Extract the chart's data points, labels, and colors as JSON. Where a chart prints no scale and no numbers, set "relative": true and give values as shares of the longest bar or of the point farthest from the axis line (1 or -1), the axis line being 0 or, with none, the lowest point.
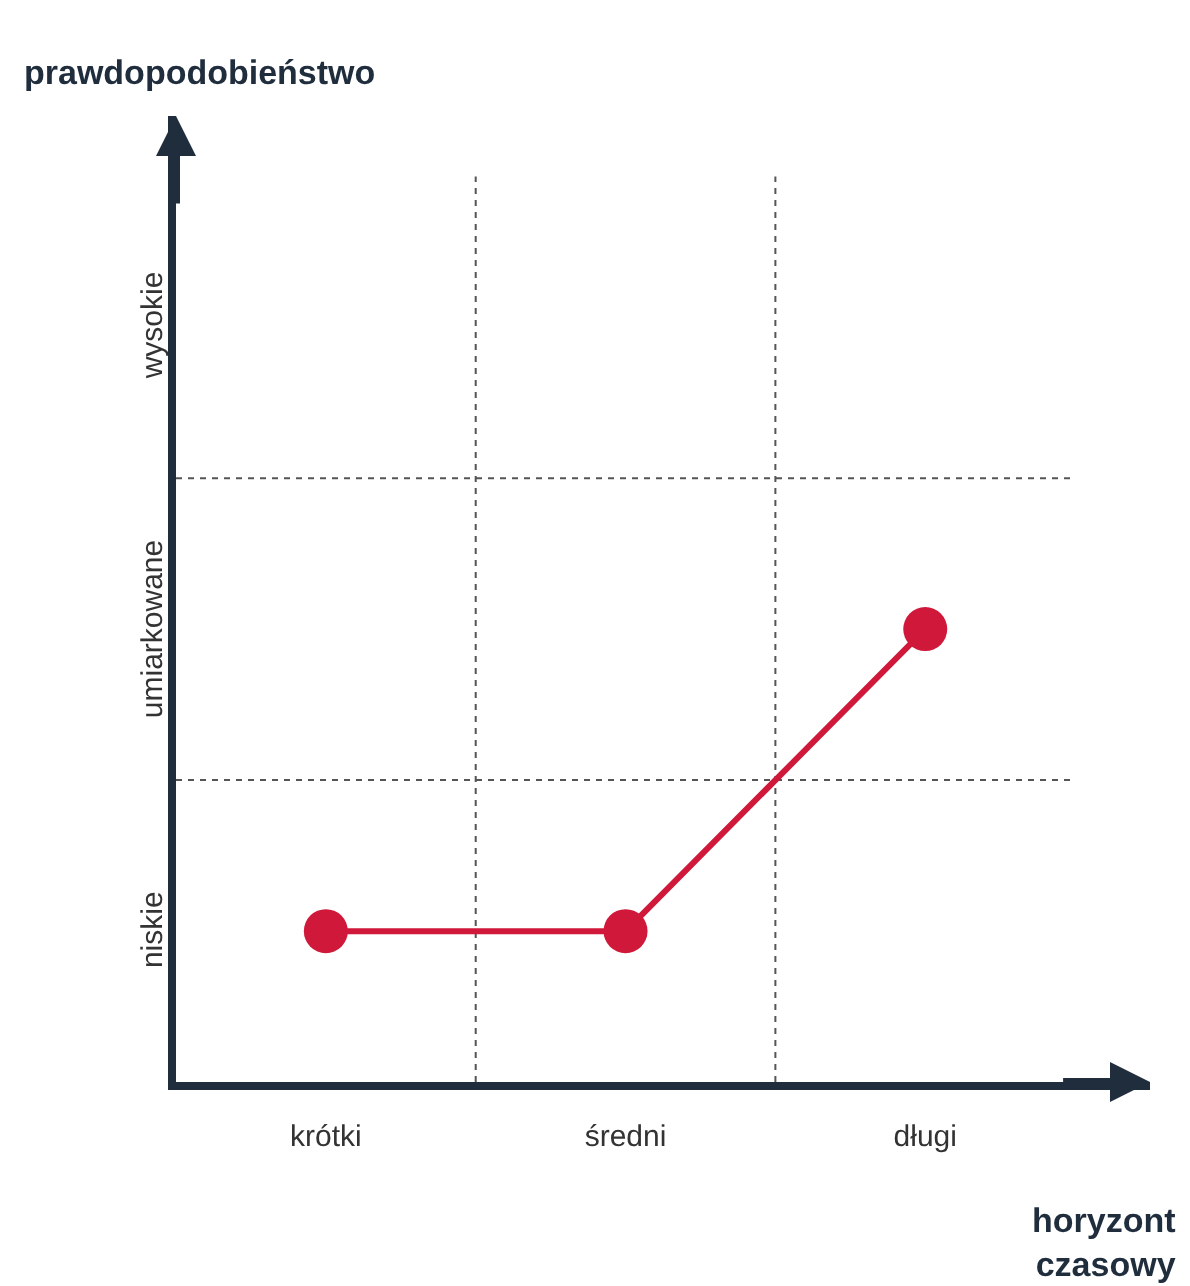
{
  "chart_data": {
    "type": "line",
    "xlabel": "horyzont czasowy",
    "relative": true,
    "categories": [
      "krótki",
      "średni",
      "długi"
    ],
    "series": [
      {
        "color": "#d0193a",
        "values": [
          0.333,
          0.333,
          1
        ]
      }
    ],
    "annotations": [
      "niskie",
      "umiarkowane",
      "wysokie",
      "prawdopodobieństwo"
    ],
    "ref_lines": [
      {
        "axis": "y",
        "value": 0.667,
        "color": "#555555",
        "line_style": "dotted"
      },
      {
        "axis": "y",
        "value": 1.333,
        "color": "#555555",
        "line_style": "dotted"
      }
    ],
    "marker": "circle",
    "line_style": "solid",
    "grid": "x"
  }
}
